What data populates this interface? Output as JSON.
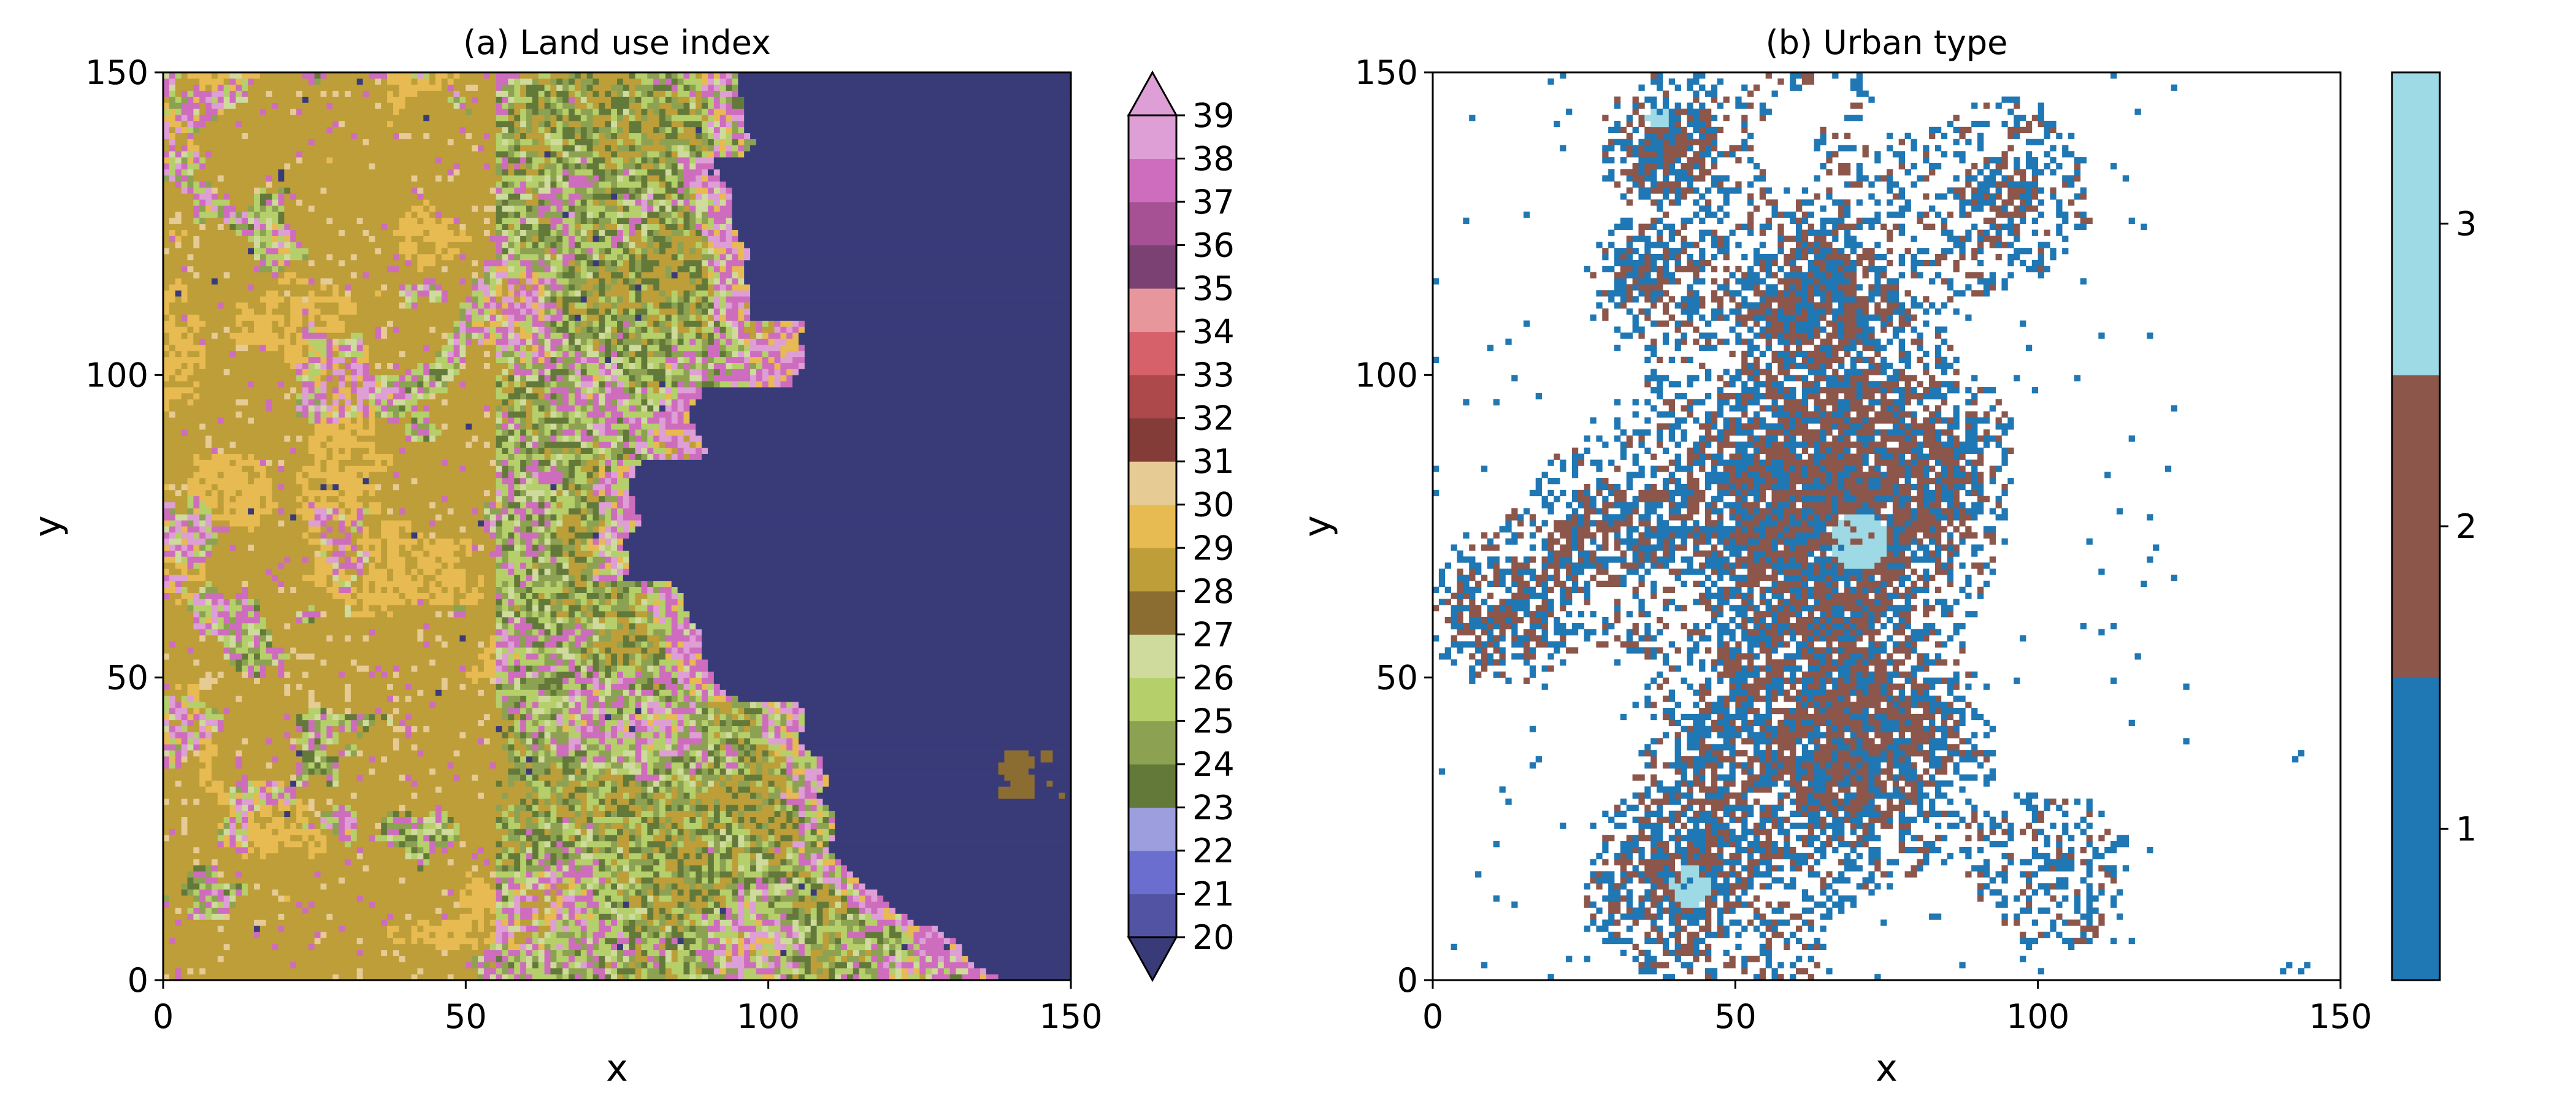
{
  "chart_data": [
    {
      "type": "heatmap",
      "title": "(a) Land use index",
      "xlabel": "x",
      "ylabel": "y",
      "xlim": [
        0,
        150
      ],
      "ylim": [
        0,
        150
      ],
      "xticks": [
        "0",
        "50",
        "100",
        "150"
      ],
      "yticks": [
        "0",
        "50",
        "100",
        "150"
      ],
      "grid": false,
      "colorbar": {
        "levels": [
          20,
          21,
          22,
          23,
          24,
          25,
          26,
          27,
          28,
          29,
          30,
          31,
          32,
          33,
          34,
          35,
          36,
          37,
          38,
          39
        ],
        "labels": [
          "20",
          "21",
          "22",
          "23",
          "24",
          "25",
          "26",
          "27",
          "28",
          "29",
          "30",
          "31",
          "32",
          "33",
          "34",
          "35",
          "36",
          "37",
          "38",
          "39"
        ],
        "colors": [
          "#393b79",
          "#5254a3",
          "#6b6ecf",
          "#9c9ede",
          "#637939",
          "#8ca252",
          "#b5cf6b",
          "#cedb9c",
          "#8c6d31",
          "#bd9e39",
          "#e7ba52",
          "#e7cb94",
          "#843c39",
          "#ad494a",
          "#d6616b",
          "#e7969c",
          "#7b4173",
          "#a55194",
          "#ce6dbd",
          "#de9ed6"
        ],
        "extend": "both"
      },
      "water_index": 20
    },
    {
      "type": "heatmap",
      "title": "(b) Urban type",
      "xlabel": "x",
      "ylabel": "y",
      "xlim": [
        0,
        150
      ],
      "ylim": [
        0,
        150
      ],
      "xticks": [
        "0",
        "50",
        "100",
        "150"
      ],
      "yticks": [
        "0",
        "50",
        "100",
        "150"
      ],
      "grid": false,
      "colorbar": {
        "levels": [
          1,
          2,
          3
        ],
        "labels": [
          "1",
          "2",
          "3"
        ],
        "colors": [
          "#1f77b4",
          "#8c564b",
          "#9edae5"
        ],
        "extend": "neither"
      }
    }
  ]
}
